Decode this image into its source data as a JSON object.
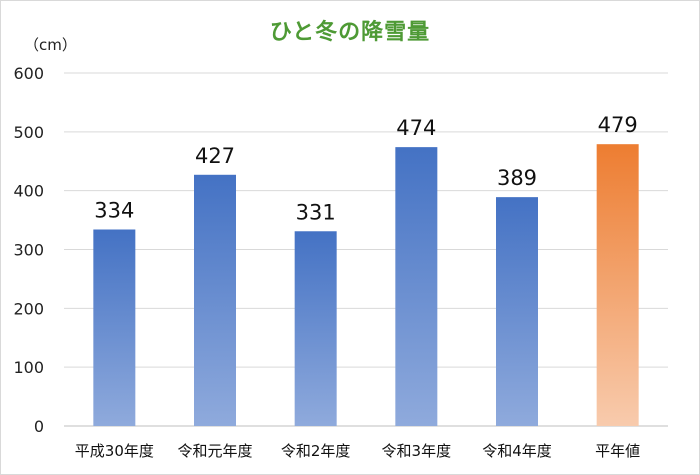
{
  "chart_data": {
    "type": "bar",
    "title": "ひと冬の降雪量",
    "ylabel": "（cm）",
    "xlabel": "",
    "categories": [
      "平成30年度",
      "令和元年度",
      "令和2年度",
      "令和3年度",
      "令和4年度",
      "平年値"
    ],
    "values": [
      334,
      427,
      331,
      474,
      389,
      479
    ],
    "data_labels": [
      "334",
      "427",
      "331",
      "474",
      "389",
      "479"
    ],
    "ylim": [
      0,
      600
    ],
    "yticks": [
      "0",
      "100",
      "200",
      "300",
      "400",
      "500",
      "600"
    ],
    "grid": true,
    "legend": "none",
    "colors": {
      "bar_top": "#4472c4",
      "bar_bottom": "#8faadc",
      "highlight_top": "#ed7d31",
      "highlight_bottom": "#f8cbad",
      "title": "#4e9a35"
    }
  }
}
